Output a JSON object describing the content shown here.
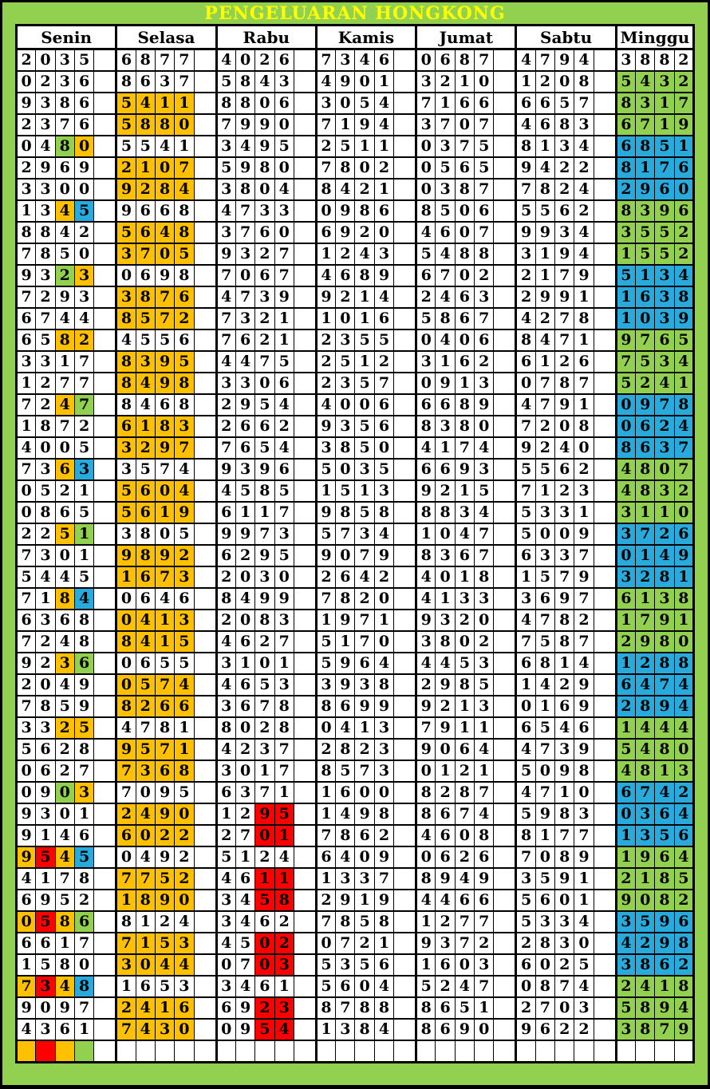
{
  "title": "PENGELUARAN HONGKONG",
  "title_color": "#FFFF00",
  "days": [
    "Senin",
    "Selasa",
    "Rabu",
    "Kamis",
    "Jumat",
    "Sabtu",
    "Minggu"
  ],
  "colors": {
    "w": "#FFFFFF",
    "o": "#FFC000",
    "r": "#FF0000",
    "g": "#92D050",
    "b": "#28AADC"
  },
  "page_bg": "#92D050",
  "rows": [
    [
      "2035:wwww",
      "6877:wwww",
      "4026:wwww",
      "7346:wwww",
      "0687:wwww",
      "4794:wwww",
      "3882:wwww"
    ],
    [
      "0236:wwww",
      "8637:wwww",
      "5843:wwww",
      "4901:wwww",
      "3210:wwww",
      "1208:wwww",
      "5432:gggg"
    ],
    [
      "9386:wwww",
      "5411:oooo",
      "8806:wwww",
      "3054:wwww",
      "7166:wwww",
      "6657:wwww",
      "8317:gggg"
    ],
    [
      "2376:wwww",
      "5880:oooo",
      "7990:wwww",
      "7194:wwww",
      "3707:wwww",
      "4683:wwww",
      "6719:gggg"
    ],
    [
      "0480:wwgo",
      "5541:wwww",
      "3495:wwww",
      "2511:wwww",
      "0375:wwww",
      "8134:wwww",
      "6851:bbbb"
    ],
    [
      "2969:wwww",
      "2107:oooo",
      "5980:wwww",
      "7802:wwww",
      "0565:wwww",
      "9422:wwww",
      "8176:bbbb"
    ],
    [
      "3300:wwww",
      "9284:oooo",
      "3804:wwww",
      "8421:wwww",
      "0387:wwww",
      "7824:wwww",
      "2960:bbbb"
    ],
    [
      "1345:wwob",
      "9668:wwww",
      "4733:wwww",
      "0986:wwww",
      "8506:wwww",
      "5562:wwww",
      "8396:gggg"
    ],
    [
      "8842:wwww",
      "5648:oooo",
      "3760:wwww",
      "6920:wwww",
      "4607:wwww",
      "9934:wwww",
      "3552:gggg"
    ],
    [
      "7850:wwww",
      "3705:oooo",
      "9327:wwww",
      "1243:wwww",
      "5488:wwww",
      "3194:wwww",
      "1552:gggg"
    ],
    [
      "9323:wwgo",
      "0698:wwww",
      "7067:wwww",
      "4689:wwww",
      "6702:wwww",
      "2179:wwww",
      "5134:bbbb"
    ],
    [
      "7293:wwww",
      "3876:oooo",
      "4739:wwww",
      "9214:wwww",
      "2463:wwww",
      "2991:wwww",
      "1638:bbbb"
    ],
    [
      "6744:wwww",
      "8572:oooo",
      "7321:wwww",
      "1016:wwww",
      "5867:wwww",
      "4278:wwww",
      "1039:bbbb"
    ],
    [
      "6582:wwoo",
      "4556:wwww",
      "7621:wwww",
      "2355:wwww",
      "0406:wwww",
      "8471:wwww",
      "9765:gggg"
    ],
    [
      "3317:wwww",
      "8395:oooo",
      "4475:wwww",
      "2512:wwww",
      "3162:wwww",
      "6126:wwww",
      "7534:gggg"
    ],
    [
      "1277:wwww",
      "8498:oooo",
      "3306:wwww",
      "2357:wwww",
      "0913:wwww",
      "0787:wwww",
      "5241:gggg"
    ],
    [
      "7247:wwog",
      "8468:wwww",
      "2954:wwww",
      "4006:wwww",
      "6689:wwww",
      "4791:wwww",
      "0978:bbbb"
    ],
    [
      "1872:wwww",
      "6183:oooo",
      "2662:wwww",
      "9356:wwww",
      "8380:wwww",
      "7208:wwww",
      "0624:bbbb"
    ],
    [
      "4005:wwww",
      "3297:oooo",
      "7654:wwww",
      "3850:wwww",
      "4174:wwww",
      "9240:wwww",
      "8637:bbbb"
    ],
    [
      "7363:wwob",
      "3574:wwww",
      "9396:wwww",
      "5035:wwww",
      "6693:wwww",
      "5562:wwww",
      "4807:gggg"
    ],
    [
      "0521:wwww",
      "5604:oooo",
      "4585:wwww",
      "1513:wwww",
      "9215:wwww",
      "7123:wwww",
      "4832:gggg"
    ],
    [
      "0865:wwww",
      "5619:oooo",
      "6117:wwww",
      "9858:wwww",
      "8834:wwww",
      "5331:wwww",
      "3110:gggg"
    ],
    [
      "2251:wwog",
      "3805:wwww",
      "9973:wwww",
      "5734:wwww",
      "1047:wwww",
      "5009:wwww",
      "3726:bbbb"
    ],
    [
      "7301:wwww",
      "9892:oooo",
      "6295:wwww",
      "9079:wwww",
      "8367:wwww",
      "6337:wwww",
      "0149:bbbb"
    ],
    [
      "5445:wwww",
      "1673:oooo",
      "2030:wwww",
      "2642:wwww",
      "4018:wwww",
      "1579:wwww",
      "3281:bbbb"
    ],
    [
      "7184:wwob",
      "0646:wwww",
      "8499:wwww",
      "7820:wwww",
      "4133:wwww",
      "3697:wwww",
      "6138:gggg"
    ],
    [
      "6368:wwww",
      "0413:oooo",
      "2083:wwww",
      "1971:wwww",
      "9320:wwww",
      "4782:wwww",
      "1791:gggg"
    ],
    [
      "7248:wwww",
      "8415:oooo",
      "4627:wwww",
      "5170:wwww",
      "3802:wwww",
      "7587:wwww",
      "2980:gggg"
    ],
    [
      "9236:wwog",
      "0655:wwww",
      "3101:wwww",
      "5964:wwww",
      "4453:wwww",
      "6814:wwww",
      "1288:bbbb"
    ],
    [
      "2049:wwww",
      "0574:oooo",
      "4653:wwww",
      "3938:wwww",
      "2985:wwww",
      "1429:wwww",
      "6474:bbbb"
    ],
    [
      "7859:wwww",
      "8266:oooo",
      "3678:wwww",
      "8699:wwww",
      "9213:wwww",
      "0169:wwww",
      "2894:bbbb"
    ],
    [
      "3325:wwoo",
      "4781:wwww",
      "8028:wwww",
      "0413:wwww",
      "7911:wwww",
      "6546:wwww",
      "1444:gggg"
    ],
    [
      "5628:wwww",
      "9571:oooo",
      "4237:wwww",
      "2823:wwww",
      "9064:wwww",
      "4739:wwww",
      "5480:gggg"
    ],
    [
      "0627:wwww",
      "7368:oooo",
      "3017:wwww",
      "8573:wwww",
      "0121:wwww",
      "5098:wwww",
      "4813:gggg"
    ],
    [
      "0903:wwgo",
      "7095:wwww",
      "6371:wwww",
      "1600:wwww",
      "8287:wwww",
      "4710:wwww",
      "6742:bbbb"
    ],
    [
      "9301:wwww",
      "2490:oooo",
      "1295:wwrr",
      "1498:wwww",
      "8674:wwww",
      "5983:wwww",
      "0364:bbbb"
    ],
    [
      "9146:wwww",
      "6022:oooo",
      "2701:wwrr",
      "7862:wwww",
      "4608:wwww",
      "8177:wwww",
      "1356:bbbb"
    ],
    [
      "9545:orob",
      "0492:wwww",
      "5124:wwww",
      "6409:wwww",
      "0626:wwww",
      "7089:wwww",
      "1964:gggg"
    ],
    [
      "4178:wwww",
      "7752:oooo",
      "4611:wwrr",
      "1337:wwww",
      "8949:wwww",
      "3591:wwww",
      "2185:gggg"
    ],
    [
      "6952:wwww",
      "1890:oooo",
      "3458:wwrr",
      "2919:wwww",
      "4466:wwww",
      "5601:wwww",
      "9082:gggg"
    ],
    [
      "0586:orog",
      "8124:wwww",
      "3462:wwww",
      "7858:wwww",
      "1277:wwww",
      "5334:wwww",
      "3596:bbbb"
    ],
    [
      "6617:wwww",
      "7153:oooo",
      "4502:wwrr",
      "0721:wwww",
      "9372:wwww",
      "2830:wwww",
      "4298:bbbb"
    ],
    [
      "1580:wwww",
      "3044:oooo",
      "0703:wwrr",
      "5356:wwww",
      "1603:wwww",
      "6025:wwww",
      "3862:bbbb"
    ],
    [
      "7348:orob",
      "1653:wwww",
      "3461:wwww",
      "5604:wwww",
      "5247:wwww",
      "0874:wwww",
      "2418:gggg"
    ],
    [
      "9097:wwww",
      "2416:oooo",
      "6923:wwrr",
      "8788:wwww",
      "8651:wwww",
      "2703:wwww",
      "5894:gggg"
    ],
    [
      "4361:wwww",
      "7430:oooo",
      "0954:wwrr",
      "1384:wwww",
      "8690:wwww",
      "9622:wwww",
      "3879:gggg"
    ]
  ],
  "footer": [
    "orog",
    "wwww",
    "wwww",
    "wwww",
    "wwww",
    "wwww",
    "wwww"
  ]
}
